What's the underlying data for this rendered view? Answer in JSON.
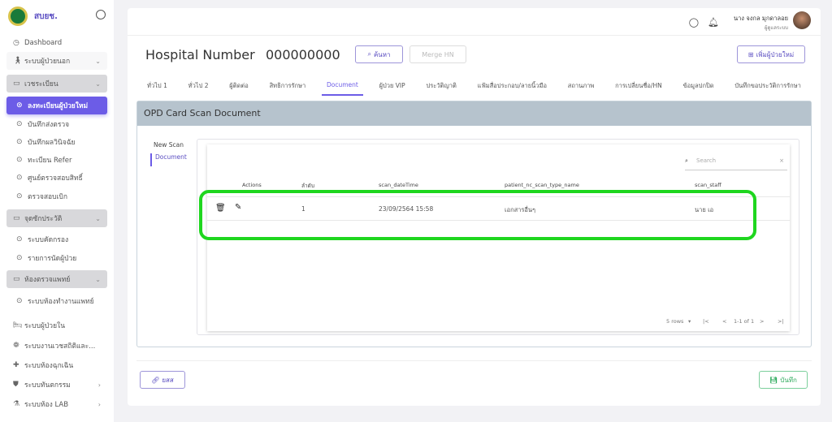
{
  "sidebar": {
    "brand": "สบยช.",
    "items": [
      {
        "label": "Dashboard",
        "icon": "clock-icon",
        "type": "plain"
      },
      {
        "label": "ระบบผู้ป่วยนอก",
        "icon": "walking-icon",
        "type": "light",
        "chevron": "⌄"
      },
      {
        "label": "เวชระเบียน",
        "icon": "monitor-icon",
        "type": "grp",
        "chevron": "⌄"
      },
      {
        "label": "ลงทะเบียนผู้ป่วยใหม่",
        "icon": "circle-icon",
        "type": "active"
      },
      {
        "label": "บันทึกส่งตรวจ",
        "icon": "circle-icon",
        "type": "sub"
      },
      {
        "label": "บันทึกผลวินิจฉัย",
        "icon": "circle-icon",
        "type": "sub"
      },
      {
        "label": "ทะเบียน Refer",
        "icon": "circle-icon",
        "type": "sub"
      },
      {
        "label": "ศูนย์ตรวจสอบสิทธิ์",
        "icon": "circle-icon",
        "type": "sub"
      },
      {
        "label": "ตรวจสอบเบิก",
        "icon": "circle-icon",
        "type": "sub"
      },
      {
        "label": "จุดซักประวัติ",
        "icon": "monitor-icon",
        "type": "grp",
        "chevron": "⌄"
      },
      {
        "label": "ระบบคัดกรอง",
        "icon": "circle-icon",
        "type": "sub"
      },
      {
        "label": "รายการนัดผู้ป่วย",
        "icon": "circle-icon",
        "type": "sub"
      },
      {
        "label": "ห้องตรวจแพทย์",
        "icon": "monitor-icon",
        "type": "grp",
        "chevron": "⌄"
      },
      {
        "label": "ระบบห้องทำงานแพทย์",
        "icon": "circle-icon",
        "type": "sub"
      },
      {
        "label": "ระบบผู้ป่วยใน",
        "icon": "bed-icon",
        "type": "plain"
      },
      {
        "label": "ระบบงานเวชสถิติและ...",
        "icon": "hands-icon",
        "type": "plain"
      },
      {
        "label": "ระบบห้องฉุกเฉิน",
        "icon": "cross-icon",
        "type": "plain"
      },
      {
        "label": "ระบบทันตกรรม",
        "icon": "tooth-icon",
        "type": "plain",
        "chevron": "›"
      },
      {
        "label": "ระบบห้อง LAB",
        "icon": "microscope-icon",
        "type": "plain",
        "chevron": "›"
      }
    ]
  },
  "header": {
    "user_name": "นาง จงกล มุกดาลอย",
    "user_role": "ผู้ดูแลระบบ"
  },
  "page": {
    "title": "Hospital Number",
    "hn": "000000000",
    "search_btn": "ค้นหา",
    "merge_btn": "Merge HN",
    "add_btn": "เพิ่มผู้ป่วยใหม่"
  },
  "tabs": [
    "ทั่วไป 1",
    "ทั่วไป 2",
    "ผู้ติดต่อ",
    "สิทธิการรักษา",
    "Document",
    "ผู้ป่วย VIP",
    "ประวัติญาติ",
    "แฟ้มสื่อประกอบ/ลายนิ้วมือ",
    "สถานภาพ",
    "การเปลี่ยนชื่อ/HN",
    "ข้อมูลปกปิด",
    "บันทึกขอประวัติการรักษา"
  ],
  "active_tab": "Document",
  "panel": {
    "title": "OPD Card Scan Document",
    "side_tabs": [
      "New Scan",
      "Document"
    ]
  },
  "table": {
    "search_placeholder": "Search",
    "headers": [
      "Actions",
      "ลำดับ",
      "scan_dateTime",
      "patient_nc_scan_type_name",
      "scan_staff"
    ],
    "rows": [
      {
        "no": "1",
        "datetime": "23/09/2564 15:58",
        "type": "เอกสารอื่นๆ",
        "staff": "นาย เอ"
      }
    ],
    "rows_per_page": "5 rows",
    "range": "1-1 of 1"
  },
  "footer": {
    "link_btn": "ยสส",
    "save_btn": "บันทึก"
  },
  "colors": {
    "accent": "#6c5ce7",
    "highlight": "#1fd61f",
    "save": "#2eaa5c"
  }
}
